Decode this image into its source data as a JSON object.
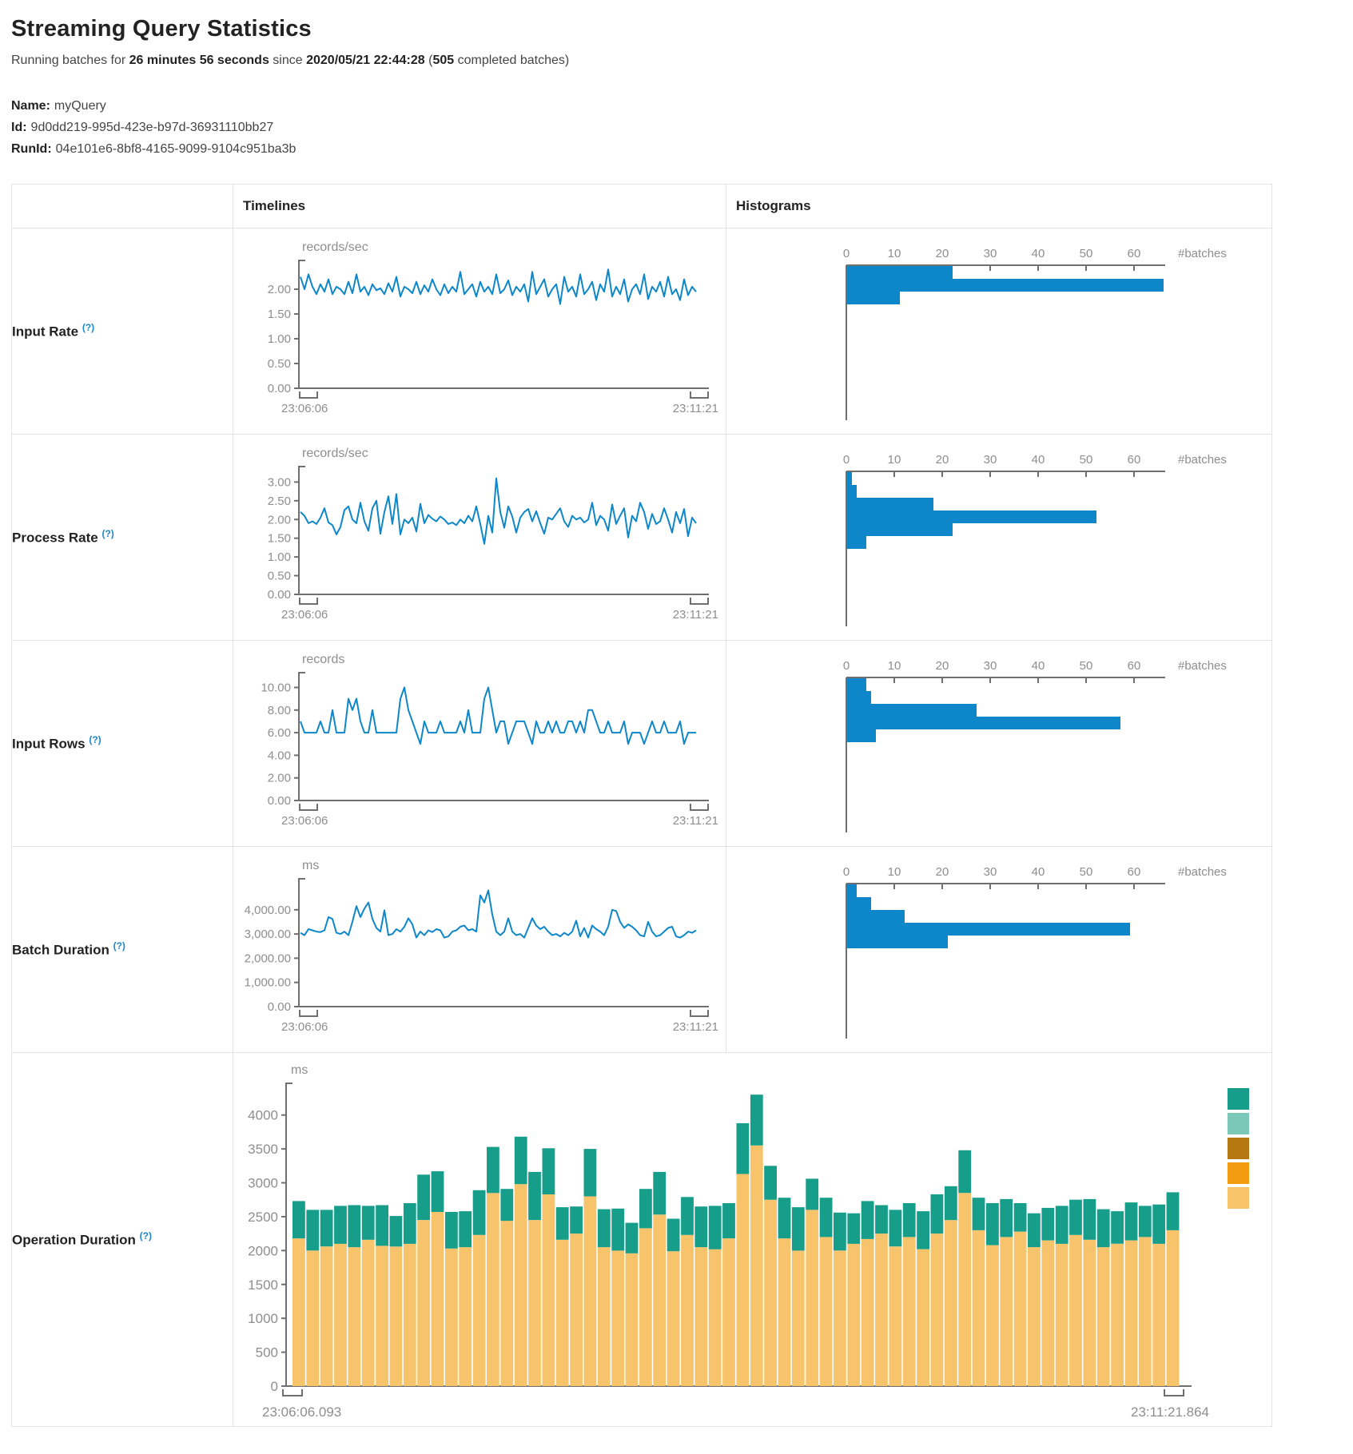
{
  "page": {
    "title": "Streaming Query Statistics",
    "status_line": {
      "prefix": "Running batches for ",
      "duration": "26 minutes 56 seconds",
      "mid": " since ",
      "since": "2020/05/21 22:44:28",
      "open": " (",
      "batches": "505",
      "suffix": " completed batches)"
    },
    "query": {
      "name_label": "Name:",
      "name": "myQuery",
      "id_label": "Id:",
      "id": "9d0dd219-995d-423e-b97d-36931110bb27",
      "runid_label": "RunId:",
      "runid": "04e101e6-8bf8-4165-9099-9104c951ba3b"
    }
  },
  "table": {
    "headers": {
      "timelines": "Timelines",
      "histograms": "Histograms"
    },
    "rows": [
      {
        "label": "Input Rate",
        "help": "(?)"
      },
      {
        "label": "Process Rate",
        "help": "(?)"
      },
      {
        "label": "Input Rows",
        "help": "(?)"
      },
      {
        "label": "Batch Duration",
        "help": "(?)"
      },
      {
        "label": "Operation Duration",
        "help": "(?)"
      }
    ]
  },
  "colors": {
    "blue": "#0d87c9",
    "teal": "#169e8b",
    "teal_light": "#7cc8b8",
    "brown": "#b5770f",
    "orange": "#f39c12",
    "orange_light": "#f7c46c",
    "axis": "#6f6f6f",
    "axis_text": "#8e8e8e"
  },
  "chart_data": [
    {
      "row": "Input Rate",
      "timeline": {
        "type": "line",
        "unit": "records/sec",
        "x_start": "23:06:06",
        "x_end": "23:11:21",
        "ymax": 2.42,
        "y_ticks": [
          2,
          1.5,
          1,
          0.5,
          0
        ],
        "y_tick_labels": [
          "2.00",
          "1.50",
          "1.00",
          "0.50",
          "0.00"
        ],
        "values": [
          2.25,
          2.0,
          2.3,
          2.05,
          1.9,
          2.1,
          1.95,
          2.2,
          1.9,
          2.05,
          2.0,
          1.9,
          2.15,
          1.92,
          2.3,
          1.95,
          2.05,
          1.88,
          2.1,
          1.98,
          2.02,
          1.9,
          2.12,
          1.95,
          2.25,
          1.85,
          2.05,
          2.0,
          1.92,
          2.15,
          1.9,
          2.08,
          1.95,
          2.2,
          2.0,
          1.88,
          2.1,
          1.92,
          2.05,
          1.95,
          2.35,
          1.9,
          2.0,
          2.1,
          1.85,
          2.15,
          1.95,
          2.05,
          1.9,
          2.3,
          1.92,
          2.0,
          2.18,
          1.88,
          2.05,
          1.95,
          2.1,
          1.75,
          2.35,
          1.9,
          2.05,
          2.2,
          1.85,
          2.0,
          2.1,
          1.7,
          2.25,
          1.95,
          2.05,
          1.85,
          2.3,
          1.9,
          2.0,
          2.15,
          1.78,
          2.1,
          1.95,
          2.4,
          1.85,
          2.05,
          1.9,
          2.2,
          1.75,
          2.0,
          2.1,
          1.9,
          2.3,
          1.8,
          2.05,
          1.95,
          2.15,
          1.85,
          2.25,
          1.9,
          2.0,
          1.78,
          2.2,
          1.88,
          2.05,
          1.95
        ]
      },
      "histogram": {
        "type": "bar",
        "axis_label": "#batches",
        "ticks": [
          0,
          10,
          20,
          30,
          40,
          50,
          60
        ],
        "values": [
          22,
          66,
          11
        ]
      }
    },
    {
      "row": "Process Rate",
      "timeline": {
        "type": "line",
        "unit": "records/sec",
        "x_start": "23:06:06",
        "x_end": "23:11:21",
        "ymax": 3.2,
        "y_ticks": [
          3,
          2.5,
          2,
          1.5,
          1,
          0.5,
          0
        ],
        "y_tick_labels": [
          "3.00",
          "2.50",
          "2.00",
          "1.50",
          "1.00",
          "0.50",
          "0.00"
        ],
        "values": [
          2.2,
          2.1,
          1.9,
          1.95,
          1.88,
          2.05,
          2.3,
          1.92,
          1.85,
          1.6,
          1.8,
          2.25,
          2.35,
          2.0,
          1.9,
          2.45,
          1.95,
          1.7,
          2.3,
          2.5,
          1.62,
          2.2,
          2.62,
          1.88,
          2.68,
          1.6,
          2.0,
          1.9,
          2.05,
          1.68,
          2.42,
          1.9,
          2.12,
          2.02,
          1.95,
          2.08,
          2.0,
          1.88,
          1.92,
          1.85,
          2.0,
          1.9,
          2.1,
          1.95,
          2.35,
          1.88,
          1.35,
          2.1,
          1.65,
          3.1,
          2.2,
          1.78,
          2.35,
          2.08,
          1.65,
          2.05,
          2.2,
          2.28,
          1.95,
          2.22,
          1.9,
          1.62,
          2.05,
          2.0,
          2.15,
          2.3,
          1.95,
          1.8,
          2.1,
          2.0,
          2.05,
          1.92,
          2.0,
          2.45,
          1.85,
          2.1,
          2.0,
          1.7,
          2.4,
          1.88,
          2.1,
          2.3,
          1.52,
          2.1,
          1.95,
          2.45,
          2.2,
          1.75,
          2.15,
          1.88,
          1.95,
          2.3,
          2.0,
          1.65,
          2.2,
          1.9,
          2.28,
          1.55,
          2.05,
          1.9
        ]
      },
      "histogram": {
        "type": "bar",
        "axis_label": "#batches",
        "ticks": [
          0,
          10,
          20,
          30,
          40,
          50,
          60
        ],
        "values": [
          1,
          2,
          18,
          52,
          22,
          4
        ]
      }
    },
    {
      "row": "Input Rows",
      "timeline": {
        "type": "line",
        "unit": "records",
        "x_start": "23:06:06",
        "x_end": "23:11:21",
        "ymax": 10.6,
        "y_ticks": [
          10,
          8,
          6,
          4,
          2,
          0
        ],
        "y_tick_labels": [
          "10.00",
          "8.00",
          "6.00",
          "4.00",
          "2.00",
          "0.00"
        ],
        "values": [
          7,
          6,
          6,
          6,
          6,
          7,
          6,
          6,
          8,
          6,
          6,
          6,
          9,
          8,
          9,
          7,
          6,
          6,
          8,
          6,
          6,
          6,
          6,
          6,
          6,
          9,
          10,
          8,
          7,
          6,
          5,
          7,
          6,
          6,
          6,
          7,
          6,
          6,
          6,
          6,
          7,
          6,
          8,
          6,
          6,
          6,
          9,
          10,
          8,
          6,
          7,
          7,
          5,
          6,
          7,
          7,
          7,
          6,
          5,
          7,
          6,
          6,
          7,
          6,
          7,
          6,
          6,
          7,
          7,
          6,
          7,
          6,
          8,
          8,
          7,
          6,
          6,
          7,
          6,
          6,
          6,
          7,
          5,
          6,
          6,
          6,
          5,
          6,
          7,
          6,
          6,
          7,
          6,
          6,
          6,
          7,
          5,
          6,
          6,
          6
        ]
      },
      "histogram": {
        "type": "bar",
        "axis_label": "#batches",
        "ticks": [
          0,
          10,
          20,
          30,
          40,
          50,
          60
        ],
        "values": [
          4,
          5,
          27,
          57,
          6
        ]
      }
    },
    {
      "row": "Batch Duration",
      "timeline": {
        "type": "line",
        "unit": "ms",
        "x_start": "23:06:06",
        "x_end": "23:11:21",
        "ymax": 4950,
        "y_ticks": [
          4000,
          3000,
          2000,
          1000,
          0
        ],
        "y_tick_labels": [
          "4,000.00",
          "3,000.00",
          "2,000.00",
          "1,000.00",
          "0.00"
        ],
        "values": [
          3050,
          2950,
          3200,
          3150,
          3100,
          3080,
          3150,
          3700,
          3620,
          3050,
          3000,
          3100,
          2950,
          3500,
          4150,
          3700,
          4050,
          4300,
          3620,
          3250,
          3100,
          3980,
          2950,
          3000,
          3200,
          3100,
          3300,
          3650,
          3400,
          2850,
          3100,
          2950,
          3150,
          3080,
          3200,
          3150,
          2850,
          2900,
          3100,
          3150,
          3300,
          3350,
          3150,
          3200,
          3100,
          4600,
          4300,
          4800,
          3800,
          3100,
          2950,
          3100,
          3650,
          3100,
          2950,
          3000,
          2850,
          3250,
          3650,
          3350,
          3200,
          3300,
          3100,
          2950,
          3000,
          2900,
          3050,
          2950,
          3100,
          3550,
          2900,
          3250,
          2850,
          3350,
          3200,
          3100,
          2950,
          3300,
          4000,
          3950,
          3500,
          3250,
          3400,
          3300,
          3150,
          2950,
          2900,
          3500,
          3100,
          2900,
          2950,
          3100,
          3250,
          3300,
          2900,
          2850,
          2950,
          3100,
          3050,
          3150
        ]
      },
      "histogram": {
        "type": "bar",
        "axis_label": "#batches",
        "ticks": [
          0,
          10,
          20,
          30,
          40,
          50,
          60
        ],
        "values": [
          2,
          5,
          12,
          59,
          21
        ]
      }
    },
    {
      "row": "Operation Duration",
      "stacked": {
        "type": "stacked-bar",
        "unit": "ms",
        "x_start": "23:06:06.093",
        "x_end": "23:11:21.864",
        "ymax": 4350,
        "y_ticks": [
          4000,
          3500,
          3000,
          2500,
          2000,
          1500,
          1000,
          500,
          0
        ],
        "y_tick_labels": [
          "4000",
          "3500",
          "3000",
          "2500",
          "2000",
          "1500",
          "1000",
          "500",
          "0"
        ],
        "series": [
          {
            "name": "bottom-segment",
            "color_key": "orange_light",
            "values": [
              2180,
              2000,
              2060,
              2100,
              2050,
              2160,
              2070,
              2060,
              2100,
              2450,
              2570,
              2030,
              2050,
              2230,
              2850,
              2440,
              2980,
              2450,
              2830,
              2160,
              2250,
              2800,
              2050,
              2000,
              1960,
              2330,
              2530,
              1990,
              2230,
              2050,
              2020,
              2180,
              3130,
              3550,
              2750,
              2180,
              2000,
              2600,
              2200,
              2000,
              2100,
              2170,
              2250,
              2060,
              2200,
              2020,
              2250,
              2450,
              2850,
              2300,
              2080,
              2200,
              2280,
              2050,
              2150,
              2100,
              2230,
              2160,
              2050,
              2100,
              2150,
              2200,
              2100,
              2300
            ]
          },
          {
            "name": "top-segment",
            "color_key": "teal",
            "values": [
              550,
              600,
              540,
              560,
              620,
              500,
              600,
              450,
              600,
              670,
              600,
              540,
              530,
              660,
              680,
              470,
              700,
              710,
              680,
              480,
              400,
              700,
              560,
              620,
              450,
              580,
              630,
              480,
              560,
              600,
              640,
              520,
              750,
              750,
              500,
              600,
              640,
              460,
              580,
              560,
              450,
              560,
              420,
              540,
              500,
              560,
              580,
              500,
              630,
              480,
              620,
              560,
              420,
              500,
              480,
              560,
              520,
              600,
              560,
              480,
              560,
              460,
              580,
              560
            ]
          }
        ],
        "legend_color_keys": [
          "teal",
          "teal_light",
          "brown",
          "orange",
          "orange_light"
        ]
      }
    }
  ]
}
